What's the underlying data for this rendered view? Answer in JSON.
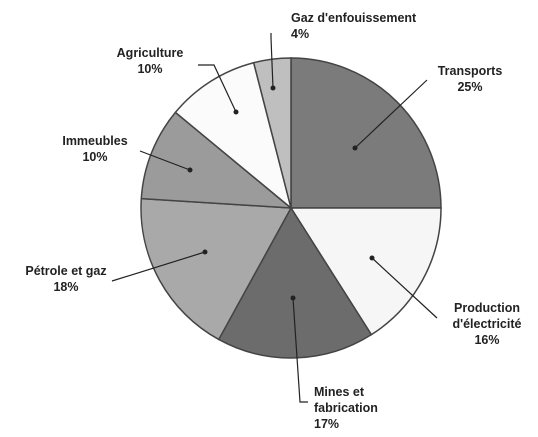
{
  "chart_data": {
    "type": "pie",
    "categories": [
      "Transports",
      "Production\nd'électricité",
      "Mines et\nfabrication",
      "Pétrole et gaz",
      "Immeubles",
      "Agriculture",
      "Gaz d'enfouissement"
    ],
    "values": [
      25,
      16,
      17,
      18,
      10,
      10,
      4
    ],
    "value_labels": [
      "25%",
      "16%",
      "17%",
      "18%",
      "10%",
      "10%",
      "4%"
    ],
    "colors": [
      "#7b7b7b",
      "#f6f6f6",
      "#6c6c6c",
      "#a9a9a9",
      "#9b9b9b",
      "#fbfbfb",
      "#bfbfbf"
    ]
  }
}
